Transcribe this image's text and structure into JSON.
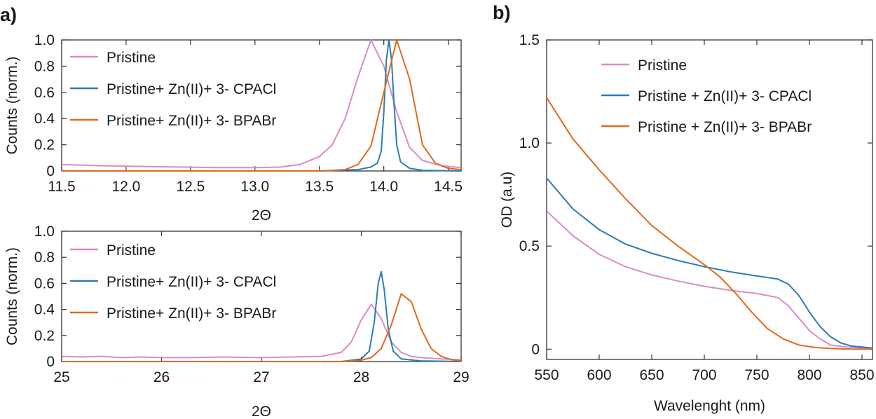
{
  "colors": {
    "pristine": "#d98cc7",
    "cpacl": "#2a7db8",
    "bpabr": "#e06a1c"
  },
  "chart_data": [
    {
      "panel": "a)",
      "type": "line",
      "xlabel": "2Θ",
      "ylabel": "Counts (norm.)",
      "xlim": [
        11.5,
        14.6
      ],
      "ylim": [
        0,
        1.0
      ],
      "xticks": [
        "11.5",
        "12.0",
        "12.5",
        "13.0",
        "13.5",
        "14.0",
        "14.5"
      ],
      "yticks": [
        "0",
        "0.2",
        "0.4",
        "0.6",
        "0.8",
        "1.0"
      ],
      "legend_position": "top-left",
      "series": [
        {
          "name": "Pristine",
          "color": "#d98cc7",
          "x": [
            11.5,
            11.8,
            12.1,
            12.4,
            12.7,
            13.0,
            13.2,
            13.35,
            13.5,
            13.6,
            13.7,
            13.8,
            13.9,
            14.0,
            14.1,
            14.2,
            14.3,
            14.45,
            14.6
          ],
          "y": [
            0.05,
            0.04,
            0.035,
            0.03,
            0.025,
            0.025,
            0.03,
            0.05,
            0.11,
            0.2,
            0.4,
            0.72,
            1.0,
            0.8,
            0.45,
            0.18,
            0.08,
            0.04,
            0.025
          ]
        },
        {
          "name": "Pristine+ Zn(II)+ 3- CPACl",
          "color": "#2a7db8",
          "x": [
            11.5,
            13.5,
            13.8,
            13.9,
            13.95,
            13.98,
            14.0,
            14.02,
            14.04,
            14.06,
            14.08,
            14.1,
            14.13,
            14.2,
            14.3,
            14.6
          ],
          "y": [
            0.0,
            0.0,
            0.01,
            0.03,
            0.06,
            0.15,
            0.45,
            0.85,
            1.0,
            0.85,
            0.5,
            0.2,
            0.07,
            0.02,
            0.005,
            0.0
          ]
        },
        {
          "name": "Pristine+ Zn(II)+ 3- BPABr",
          "color": "#e06a1c",
          "x": [
            11.5,
            13.5,
            13.7,
            13.8,
            13.9,
            14.0,
            14.1,
            14.2,
            14.3,
            14.4,
            14.5,
            14.6
          ],
          "y": [
            0.0,
            0.0,
            0.01,
            0.05,
            0.19,
            0.6,
            1.0,
            0.7,
            0.2,
            0.06,
            0.02,
            0.01
          ]
        }
      ]
    },
    {
      "panel": "",
      "type": "line",
      "xlabel": "2Θ",
      "ylabel": "Counts (norm.)",
      "xlim": [
        25,
        29
      ],
      "ylim": [
        0,
        1.0
      ],
      "xticks": [
        "25",
        "26",
        "27",
        "28",
        "29"
      ],
      "yticks": [
        "0",
        "0.2",
        "0.4",
        "0.6",
        "0.8",
        "1.0"
      ],
      "legend_position": "top-left",
      "series": [
        {
          "name": "Pristine",
          "color": "#d98cc7",
          "x": [
            25.0,
            25.2,
            25.4,
            25.6,
            25.8,
            26.0,
            26.3,
            26.6,
            27.0,
            27.3,
            27.6,
            27.8,
            27.9,
            28.0,
            28.1,
            28.2,
            28.3,
            28.4,
            28.5,
            28.6,
            28.8,
            29.0
          ],
          "y": [
            0.04,
            0.035,
            0.04,
            0.03,
            0.035,
            0.03,
            0.03,
            0.035,
            0.03,
            0.035,
            0.04,
            0.07,
            0.15,
            0.32,
            0.44,
            0.33,
            0.15,
            0.07,
            0.04,
            0.03,
            0.02,
            0.015
          ]
        },
        {
          "name": "Pristine+ Zn(II)+ 3- CPACl",
          "color": "#2a7db8",
          "x": [
            25.0,
            27.8,
            28.0,
            28.08,
            28.13,
            28.17,
            28.2,
            28.23,
            28.27,
            28.32,
            28.4,
            28.6,
            29.0
          ],
          "y": [
            0.0,
            0.0,
            0.02,
            0.08,
            0.3,
            0.6,
            0.69,
            0.55,
            0.25,
            0.08,
            0.02,
            0.005,
            0.0
          ]
        },
        {
          "name": "Pristine+ Zn(II)+ 3- BPABr",
          "color": "#e06a1c",
          "x": [
            25.0,
            27.8,
            28.0,
            28.1,
            28.2,
            28.3,
            28.4,
            28.5,
            28.6,
            28.7,
            28.8,
            28.9,
            29.0
          ],
          "y": [
            0.0,
            0.0,
            0.01,
            0.03,
            0.1,
            0.28,
            0.52,
            0.46,
            0.25,
            0.1,
            0.04,
            0.015,
            0.005
          ]
        }
      ]
    },
    {
      "panel": "b)",
      "type": "line",
      "xlabel": "Wavelenght (nm)",
      "ylabel": "OD (a.u)",
      "xlim": [
        550,
        860
      ],
      "ylim": [
        -0.05,
        1.5
      ],
      "xticks": [
        "550",
        "600",
        "650",
        "700",
        "750",
        "800",
        "850"
      ],
      "yticks": [
        "0",
        "0.5",
        "1.0",
        "1.5"
      ],
      "legend_position": "top-center",
      "series": [
        {
          "name": "Pristine",
          "color": "#d98cc7",
          "x": [
            550,
            575,
            600,
            625,
            650,
            675,
            700,
            725,
            750,
            770,
            780,
            790,
            800,
            810,
            820,
            835,
            850,
            860
          ],
          "y": [
            0.67,
            0.55,
            0.46,
            0.4,
            0.36,
            0.33,
            0.305,
            0.285,
            0.27,
            0.25,
            0.21,
            0.15,
            0.09,
            0.05,
            0.02,
            0.01,
            0.005,
            0.0
          ]
        },
        {
          "name": "Pristine + Zn(II)+ 3- CPACl",
          "color": "#2a7db8",
          "x": [
            550,
            575,
            600,
            625,
            650,
            675,
            700,
            725,
            750,
            770,
            780,
            790,
            800,
            810,
            820,
            830,
            840,
            850,
            860
          ],
          "y": [
            0.83,
            0.68,
            0.58,
            0.51,
            0.465,
            0.43,
            0.4,
            0.375,
            0.355,
            0.34,
            0.315,
            0.26,
            0.18,
            0.11,
            0.06,
            0.03,
            0.015,
            0.01,
            0.005
          ]
        },
        {
          "name": "Pristine + Zn(II)+ 3- BPABr",
          "color": "#e06a1c",
          "x": [
            550,
            575,
            600,
            625,
            650,
            675,
            700,
            715,
            730,
            745,
            760,
            775,
            790,
            805,
            820,
            840,
            860
          ],
          "y": [
            1.22,
            1.02,
            0.87,
            0.73,
            0.6,
            0.5,
            0.41,
            0.35,
            0.27,
            0.18,
            0.1,
            0.05,
            0.02,
            0.008,
            0.003,
            0.0,
            0.0
          ]
        }
      ]
    }
  ]
}
